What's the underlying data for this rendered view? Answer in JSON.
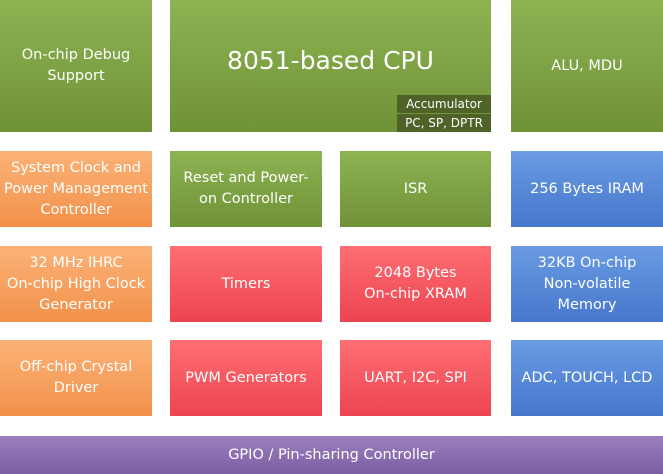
{
  "blocks": [
    {
      "label": "On-chip Debug\nSupport"
    },
    {
      "label": "8051-based CPU"
    },
    {
      "label": "ALU, MDU"
    },
    {
      "label": "System Clock and\nPower Management\nController"
    },
    {
      "label": "Reset and Power-\non Controller"
    },
    {
      "label": "ISR"
    },
    {
      "label": "256 Bytes IRAM"
    },
    {
      "label": "32 MHz IHRC\nOn-chip High Clock\nGenerator"
    },
    {
      "label": "Timers"
    },
    {
      "label": "2048 Bytes\nOn-chip XRAM"
    },
    {
      "label": "32KB On-chip\nNon-volatile\nMemory"
    },
    {
      "label": "Off-chip Crystal\nDriver"
    },
    {
      "label": "PWM Generators"
    },
    {
      "label": "UART, I2C, SPI"
    },
    {
      "label": "ADC, TOUCH, LCD"
    },
    {
      "label": "GPIO / Pin-sharing Controller"
    }
  ],
  "cpu_registers": [
    "Accumulator",
    "PC, SP, DPTR"
  ]
}
